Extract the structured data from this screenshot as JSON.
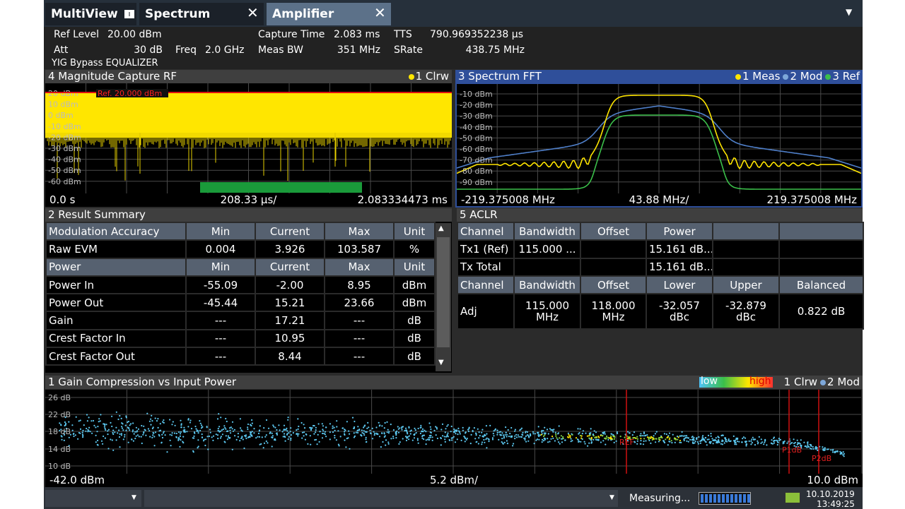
{
  "tabs": [
    "MultiView",
    "Spectrum",
    "Amplifier"
  ],
  "header": {
    "params": [
      {
        "label": "Ref Level",
        "value": "20.00 dBm"
      },
      {
        "label": "Att",
        "value": "30 dB"
      },
      {
        "label": "Freq",
        "value": "2.0 GHz"
      },
      {
        "label": "Capture Time",
        "value": "2.083 ms"
      },
      {
        "label": "Meas BW",
        "value": "351 MHz"
      },
      {
        "label": "TTS",
        "value": "790.969352238 µs"
      },
      {
        "label": "SRate",
        "value": "438.75 MHz"
      }
    ],
    "note": "YIG Bypass EQUALIZER"
  },
  "magnitude": {
    "title": "4 Magnitude Capture RF",
    "legend": [
      "1 Clrw"
    ],
    "y_labels": [
      "20 dBm",
      "10 dBm",
      "0 dBm",
      "-10 dBm",
      "-20 dBm",
      "-30 dBm",
      "-40 dBm",
      "-50 dBm",
      "-60 dBm"
    ],
    "ref_label": "Ref. 20.000 dBm",
    "footer": [
      "0.0 s",
      "208.33 µs/",
      "2.083334473 ms"
    ]
  },
  "spectrum": {
    "title": "3 Spectrum FFT",
    "legend": [
      "1 Meas",
      "2 Mod",
      "3 Ref"
    ],
    "y_labels": [
      "-10 dBm",
      "-20 dBm",
      "-30 dBm",
      "-40 dBm",
      "-50 dBm",
      "-60 dBm",
      "-70 dBm",
      "-80 dBm",
      "-90 dBm"
    ],
    "footer": [
      "-219.375008 MHz",
      "43.88 MHz/",
      "219.375008 MHz"
    ]
  },
  "summary": {
    "title": "2 Result Summary",
    "sections": [
      {
        "header": [
          "Modulation Accuracy",
          "Min",
          "Current",
          "Max",
          "Unit"
        ],
        "rows": [
          [
            "Raw EVM",
            "0.004",
            "3.926",
            "103.587",
            "%"
          ]
        ]
      },
      {
        "header": [
          "Power",
          "Min",
          "Current",
          "Max",
          "Unit"
        ],
        "rows": [
          [
            "Power In",
            "-55.09",
            "-2.00",
            "8.95",
            "dBm"
          ],
          [
            "Power Out",
            "-45.44",
            "15.21",
            "23.66",
            "dBm"
          ],
          [
            "Gain",
            "---",
            "17.21",
            "---",
            "dB"
          ],
          [
            "Crest Factor In",
            "---",
            "10.95",
            "---",
            "dB"
          ],
          [
            "Crest Factor Out",
            "---",
            "8.44",
            "---",
            "dB"
          ]
        ]
      }
    ]
  },
  "aclr": {
    "title": "5 ACLR",
    "sections": [
      {
        "header": [
          "Channel",
          "Bandwidth",
          "Offset",
          "Power"
        ],
        "rows": [
          [
            "Tx1 (Ref)",
            "115.000 ...",
            null,
            "15.161 dB..."
          ],
          [
            "Tx Total",
            null,
            null,
            "15.161 dB..."
          ]
        ]
      },
      {
        "header": [
          "Channel",
          "Bandwidth",
          "Offset",
          "Lower",
          "Upper",
          "Balanced"
        ],
        "rows": [
          [
            "Adj",
            "115.000 MHz",
            "118.000 MHz",
            "-32.057 dBc",
            "-32.879 dBc",
            "0.822 dB"
          ]
        ]
      }
    ]
  },
  "gain": {
    "title": "1 Gain Compression vs Input Power",
    "scale_low": "low",
    "scale_high": "high",
    "legend": [
      "1 Clrw",
      "2 Mod"
    ],
    "y_labels": [
      "26 dB",
      "22 dB",
      "18 dB",
      "14 dB",
      "10 dB"
    ],
    "markers": [
      "REF",
      "P1dB",
      "P2dB"
    ],
    "footer": [
      "-42.0 dBm",
      "5.2 dBm/",
      "10.0 dBm"
    ]
  },
  "status": {
    "text": "Measuring...",
    "date": "10.10.2019",
    "time": "13:49:25"
  }
}
